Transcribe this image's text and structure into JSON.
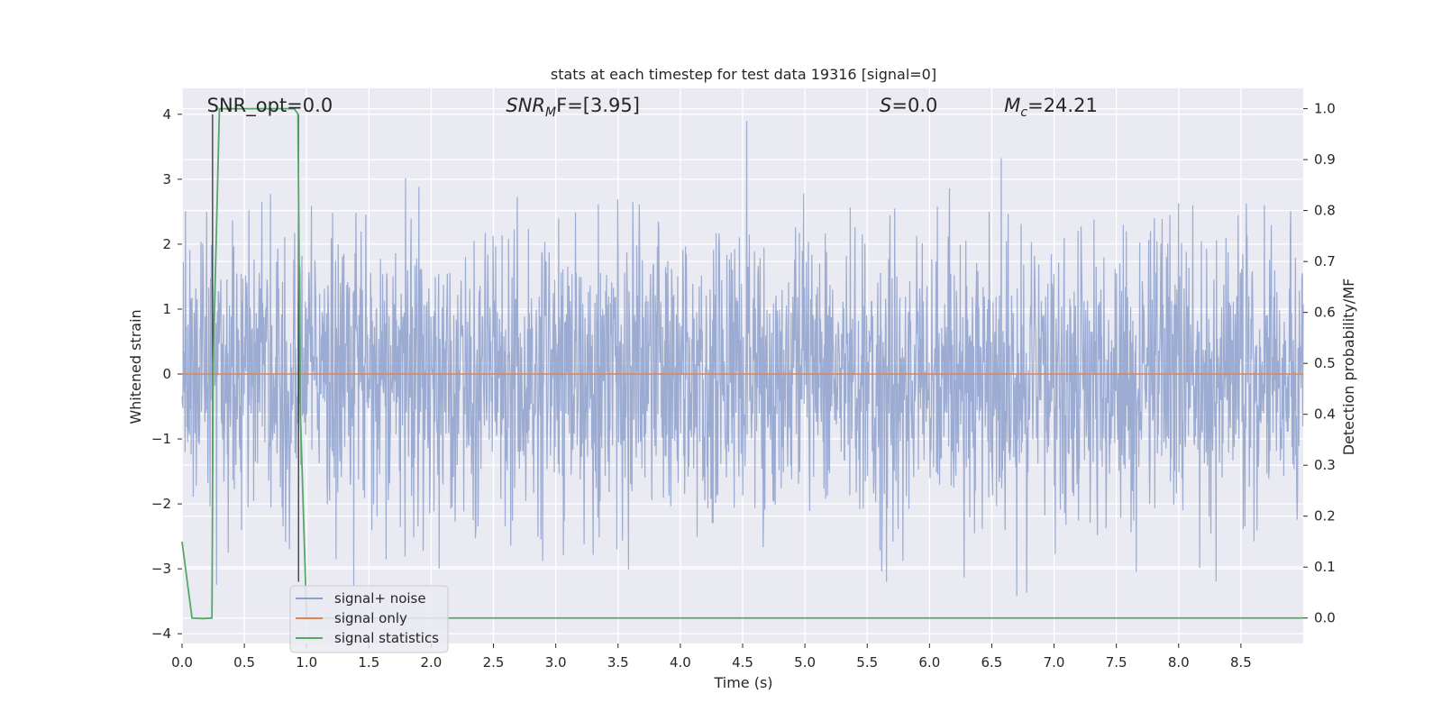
{
  "chart_data": {
    "type": "line",
    "title": "stats at each timestep for test data 19316 [signal=0]",
    "xlabel": "Time (s)",
    "ylabel": "Whitened strain",
    "ylabel_right": "Detection probability/MF",
    "xlim": [
      0,
      9.0
    ],
    "ylim": [
      -4.15,
      4.4
    ],
    "ylim_right": [
      -0.05,
      1.04
    ],
    "xticks": [
      "0.0",
      "0.5",
      "1.0",
      "1.5",
      "2.0",
      "2.5",
      "3.0",
      "3.5",
      "4.0",
      "4.5",
      "5.0",
      "5.5",
      "6.0",
      "6.5",
      "7.0",
      "7.5",
      "8.0",
      "8.5"
    ],
    "yticks": [
      "4",
      "3",
      "2",
      "1",
      "0",
      "−1",
      "−2",
      "−3",
      "−4"
    ],
    "yticks_right": [
      "1.0",
      "0.9",
      "0.8",
      "0.7",
      "0.6",
      "0.5",
      "0.4",
      "0.3",
      "0.2",
      "0.1",
      "0.0"
    ],
    "grid": true,
    "legend_position": "bottom-left",
    "annotations": [
      {
        "text": "SNR_opt=0.0",
        "x": 0.2
      },
      {
        "text_main": "SNR",
        "text_sub": "M",
        "text_rest": "F=[3.95]",
        "x": 2.6
      },
      {
        "text_main": "S",
        "text_sub": "",
        "text_rest": "=0.0",
        "x": 5.6
      },
      {
        "text_main": "M",
        "text_sub": "c",
        "text_rest": "=24.21",
        "x": 6.6
      }
    ],
    "series": [
      {
        "name": "signal+ noise",
        "color": "#8da0cb",
        "axis": "left",
        "description": "whitened noise, sample rate ~900 points drawn",
        "x_range": [
          0,
          9.0
        ],
        "amplitude_scale": 1.1,
        "seed": 19316
      },
      {
        "name": "signal only",
        "color": "#dd8452",
        "axis": "left",
        "x": [
          0,
          9.0
        ],
        "y": [
          0,
          0
        ]
      },
      {
        "name": "signal statistics",
        "color": "#55a868",
        "axis": "right",
        "x": [
          0.0,
          0.08,
          0.17,
          0.24,
          0.25,
          0.3,
          0.6,
          0.9,
          0.93,
          0.95,
          1.0,
          2.0,
          4.0,
          6.0,
          8.0,
          9.0
        ],
        "y": [
          0.15,
          0.0,
          -0.001,
          0.0,
          0.5,
          1.0,
          1.0,
          1.0,
          0.99,
          0.4,
          0.0,
          0.0,
          0.0,
          0.0,
          0.0,
          0.0
        ]
      }
    ],
    "vlines": [
      {
        "x": 0.245,
        "y_range": [
          -1.5,
          4.0
        ],
        "color": "#333333"
      },
      {
        "x": 0.935,
        "y_range": [
          -3.2,
          4.0
        ],
        "color": "#333333"
      }
    ]
  }
}
